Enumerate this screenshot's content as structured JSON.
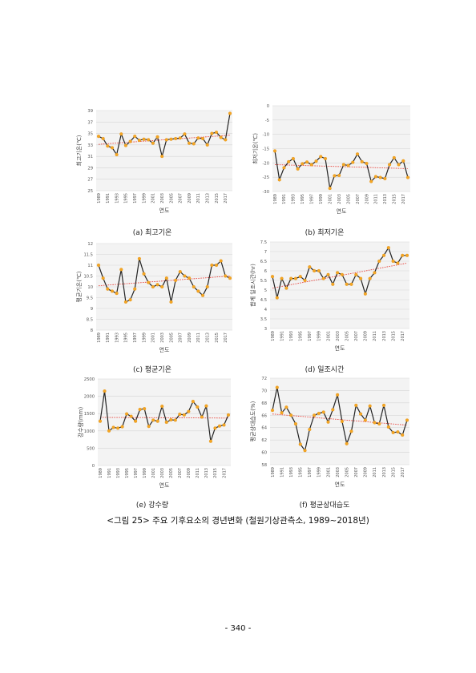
{
  "page_number": "- 340 -",
  "figure_caption": "<그림 25> 주요 기후요소의 경년변화 (철원기상관측소, 1989~2018년)",
  "chart_data": [
    {
      "id": "a",
      "type": "line",
      "caption": "(a) 최고기온",
      "ylabel": "최고기온(℃)",
      "xlabel": "연도",
      "ylim": [
        25,
        39
      ],
      "yticks": [
        25,
        27,
        29,
        31,
        33,
        35,
        37,
        39
      ],
      "xtick_labels": [
        "1989",
        "1991",
        "1993",
        "1995",
        "1997",
        "1999",
        "2001",
        "2003",
        "2005",
        "2007",
        "2009",
        "2011",
        "2013",
        "2015",
        "2017"
      ],
      "x": [
        1989,
        1990,
        1991,
        1992,
        1993,
        1994,
        1995,
        1996,
        1997,
        1998,
        1999,
        2000,
        2001,
        2002,
        2003,
        2004,
        2005,
        2006,
        2007,
        2008,
        2009,
        2010,
        2011,
        2012,
        2013,
        2014,
        2015,
        2016,
        2017,
        2018
      ],
      "values": [
        34.5,
        34.1,
        32.8,
        32.5,
        31.3,
        34.9,
        32.9,
        33.6,
        34.5,
        33.8,
        34.0,
        33.9,
        33.3,
        34.4,
        31.0,
        33.9,
        34.0,
        34.1,
        34.2,
        34.9,
        33.3,
        33.2,
        34.2,
        34.1,
        33.0,
        35.0,
        35.2,
        34.3,
        33.9,
        38.5
      ],
      "trend": [
        33.1,
        34.7
      ],
      "grid": true
    },
    {
      "id": "b",
      "type": "line",
      "caption": "(b) 최저기온",
      "ylabel": "최저기온(℃)",
      "xlabel": "연도",
      "ylim": [
        -30,
        0
      ],
      "yticks": [
        0,
        -5,
        -10,
        -15,
        -20,
        -25,
        -30
      ],
      "xtick_labels": [
        "1989",
        "1991",
        "1993",
        "1995",
        "1997",
        "1999",
        "2001",
        "2003",
        "2005",
        "2007",
        "2009",
        "2011",
        "2013",
        "2015",
        "2017"
      ],
      "x": [
        1989,
        1990,
        1991,
        1992,
        1993,
        1994,
        1995,
        1996,
        1997,
        1998,
        1999,
        2000,
        2001,
        2002,
        2003,
        2004,
        2005,
        2006,
        2007,
        2008,
        2009,
        2010,
        2011,
        2012,
        2013,
        2014,
        2015,
        2016,
        2017,
        2018
      ],
      "values": [
        -15.8,
        -25.9,
        -21.7,
        -19.6,
        -18.5,
        -22.1,
        -20.3,
        -19.7,
        -20.6,
        -19.4,
        -17.8,
        -18.5,
        -28.9,
        -24.5,
        -24.4,
        -20.6,
        -20.9,
        -19.8,
        -16.9,
        -19.6,
        -20.2,
        -26.5,
        -24.8,
        -25.1,
        -25.5,
        -20.6,
        -18.2,
        -20.6,
        -19.3,
        -25.1
      ],
      "trend": [
        -20.6,
        -22.0
      ],
      "grid": true
    },
    {
      "id": "c",
      "type": "line",
      "caption": "(c) 평균기온",
      "ylabel": "평균기온(℃)",
      "xlabel": "연도",
      "ylim": [
        8,
        12
      ],
      "yticks": [
        8,
        8.5,
        9,
        9.5,
        10,
        10.5,
        11,
        11.5,
        12
      ],
      "xtick_labels": [
        "1989",
        "1991",
        "1993",
        "1995",
        "1997",
        "1999",
        "2001",
        "2003",
        "2005",
        "2007",
        "2009",
        "2011",
        "2013",
        "2015",
        "2017"
      ],
      "x": [
        1989,
        1990,
        1991,
        1992,
        1993,
        1994,
        1995,
        1996,
        1997,
        1998,
        1999,
        2000,
        2001,
        2002,
        2003,
        2004,
        2005,
        2006,
        2007,
        2008,
        2009,
        2010,
        2011,
        2012,
        2013,
        2014,
        2015,
        2016,
        2017,
        2018
      ],
      "values": [
        11.0,
        10.4,
        9.9,
        9.8,
        9.7,
        10.8,
        9.3,
        9.4,
        9.9,
        11.3,
        10.6,
        10.2,
        10.0,
        10.1,
        10.0,
        10.4,
        9.3,
        10.3,
        10.7,
        10.5,
        10.4,
        10.0,
        9.8,
        9.6,
        10.0,
        11.0,
        11.0,
        11.2,
        10.5,
        10.4
      ],
      "trend": [
        10.05,
        10.5
      ],
      "grid": true
    },
    {
      "id": "d",
      "type": "line",
      "caption": "(d) 일조시간",
      "ylabel": "합계 일조시간(hr)",
      "xlabel": "연도",
      "ylim": [
        3,
        7.5
      ],
      "yticks": [
        3,
        3.5,
        4,
        4.5,
        5,
        5.5,
        6,
        6.5,
        7,
        7.5
      ],
      "xtick_labels": [
        "1989",
        "1991",
        "1993",
        "1995",
        "1997",
        "1999",
        "2001",
        "2003",
        "2005",
        "2007",
        "2009",
        "2011",
        "2013",
        "2015",
        "2017"
      ],
      "x": [
        1989,
        1990,
        1991,
        1992,
        1993,
        1994,
        1995,
        1996,
        1997,
        1998,
        1999,
        2000,
        2001,
        2002,
        2003,
        2004,
        2005,
        2006,
        2007,
        2008,
        2009,
        2010,
        2011,
        2012,
        2013,
        2014,
        2015,
        2016,
        2017,
        2018
      ],
      "values": [
        5.7,
        4.6,
        5.6,
        5.1,
        5.6,
        5.6,
        5.7,
        5.5,
        6.2,
        6.0,
        6.0,
        5.6,
        5.8,
        5.3,
        5.9,
        5.8,
        5.3,
        5.3,
        5.8,
        5.6,
        4.8,
        5.6,
        5.9,
        6.5,
        6.8,
        7.2,
        6.5,
        6.4,
        6.8,
        6.8
      ],
      "trend": [
        5.1,
        6.4
      ],
      "grid": true
    },
    {
      "id": "e",
      "type": "line",
      "caption": "(e) 강수량",
      "ylabel": "강수량(mm)",
      "xlabel": "연도",
      "ylim": [
        0,
        2500
      ],
      "yticks": [
        0,
        500,
        1000,
        1500,
        2000,
        2500
      ],
      "xtick_labels": [
        "1989",
        "1991",
        "1993",
        "1995",
        "1997",
        "1999",
        "2001",
        "2003",
        "2005",
        "2007",
        "2009",
        "2011",
        "2013",
        "2015",
        "2017"
      ],
      "x": [
        1989,
        1990,
        1991,
        1992,
        1993,
        1994,
        1995,
        1996,
        1997,
        1998,
        1999,
        2000,
        2001,
        2002,
        2003,
        2004,
        2005,
        2006,
        2007,
        2008,
        2009,
        2010,
        2011,
        2012,
        2013,
        2014,
        2015,
        2016,
        2017,
        2018
      ],
      "values": [
        1280,
        2150,
        1000,
        1100,
        1080,
        1120,
        1490,
        1420,
        1280,
        1620,
        1640,
        1130,
        1310,
        1280,
        1710,
        1250,
        1320,
        1310,
        1480,
        1460,
        1560,
        1850,
        1690,
        1400,
        1720,
        700,
        1080,
        1140,
        1170,
        1460
      ],
      "trend": [
        1390,
        1370
      ],
      "grid": true
    },
    {
      "id": "f",
      "type": "line",
      "caption": "(f) 평균상대습도",
      "ylabel": "평균상대습도(%)",
      "xlabel": "연도",
      "ylim": [
        58,
        72
      ],
      "yticks": [
        58,
        60,
        62,
        64,
        66,
        68,
        70,
        72
      ],
      "xtick_labels": [
        "1989",
        "1991",
        "1993",
        "1995",
        "1997",
        "1999",
        "2001",
        "2003",
        "2005",
        "2007",
        "2009",
        "2011",
        "2013",
        "2015",
        "2017"
      ],
      "x": [
        1989,
        1990,
        1991,
        1992,
        1993,
        1994,
        1995,
        1996,
        1997,
        1998,
        1999,
        2000,
        2001,
        2002,
        2003,
        2004,
        2005,
        2006,
        2007,
        2008,
        2009,
        2010,
        2011,
        2012,
        2013,
        2014,
        2015,
        2016,
        2017,
        2018
      ],
      "values": [
        66.8,
        70.5,
        66.4,
        67.3,
        66.0,
        64.6,
        61.3,
        60.3,
        63.7,
        66.0,
        66.3,
        66.5,
        64.9,
        66.9,
        69.3,
        65.0,
        61.4,
        63.4,
        67.6,
        66.2,
        65.2,
        67.5,
        64.8,
        64.6,
        67.6,
        64.1,
        63.2,
        63.3,
        62.8,
        65.2
      ],
      "trend": [
        66.2,
        64.4
      ],
      "grid": true
    }
  ]
}
